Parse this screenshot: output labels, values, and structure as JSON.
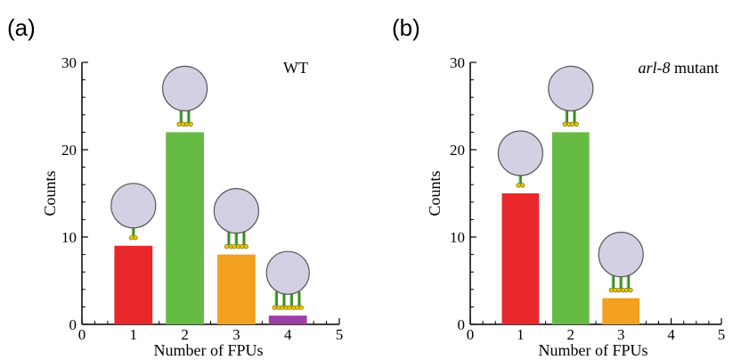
{
  "chart_data": [
    {
      "type": "bar",
      "panel_label": "(a)",
      "annotation": "WT",
      "annotation_italic": "",
      "xlabel": "Number of FPUs",
      "ylabel": "Counts",
      "xlim": [
        0,
        5
      ],
      "ylim": [
        0,
        30
      ],
      "xticks": [
        "0",
        "1",
        "2",
        "3",
        "4",
        "5"
      ],
      "yticks": [
        "0",
        "10",
        "20",
        "30"
      ],
      "categories": [
        1,
        2,
        3,
        4
      ],
      "values": [
        9,
        22,
        8,
        1
      ],
      "colors": [
        "#e8282a",
        "#66bb44",
        "#f2a020",
        "#9b3fa5"
      ],
      "legend": "none",
      "grid": false
    },
    {
      "type": "bar",
      "panel_label": "(b)",
      "annotation": " mutant",
      "annotation_italic": "arl-8",
      "xlabel": "Number of FPUs",
      "ylabel": "Counts",
      "xlim": [
        0,
        5
      ],
      "ylim": [
        0,
        30
      ],
      "xticks": [
        "0",
        "1",
        "2",
        "3",
        "4",
        "5"
      ],
      "yticks": [
        "0",
        "10",
        "20",
        "30"
      ],
      "categories": [
        1,
        2,
        3
      ],
      "values": [
        15,
        22,
        3
      ],
      "colors": [
        "#e8282a",
        "#66bb44",
        "#f2a020"
      ],
      "legend": "none",
      "grid": false
    }
  ],
  "colors": {
    "vesicle_fill": "#d4d0e4",
    "vesicle_stroke": "#555555",
    "leg_green": "#3a8a2a",
    "foot_yellow": "#e8c800"
  }
}
